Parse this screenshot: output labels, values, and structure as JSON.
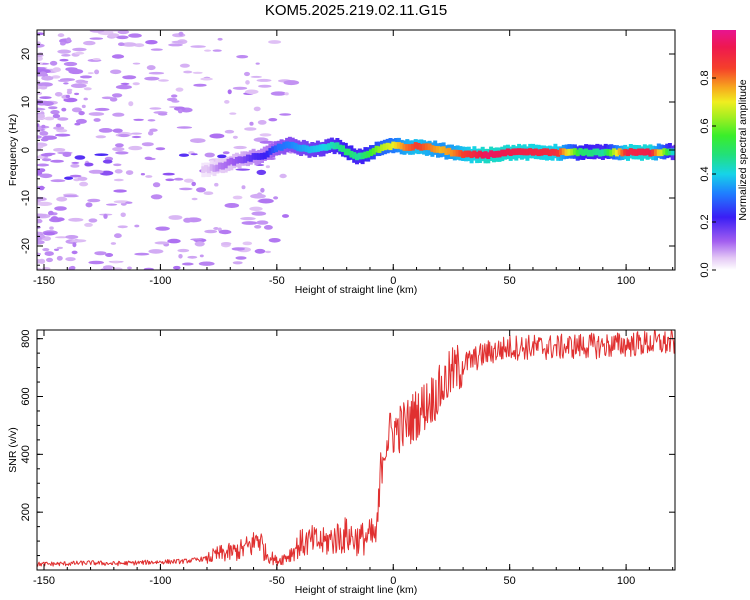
{
  "title": "KOM5.2025.219.02.11.G15",
  "chart_data": [
    {
      "type": "heatmap",
      "name": "spectrogram",
      "xlabel": "Height of straight line (km)",
      "ylabel": "Frequency (Hz)",
      "xlim": [
        -153,
        121
      ],
      "ylim": [
        -25,
        25
      ],
      "xticks": [
        -150,
        -100,
        -50,
        0,
        50,
        100
      ],
      "yticks": [
        -20,
        -10,
        0,
        10,
        20
      ],
      "colorbar": {
        "label": "Normalized spectral amplitude",
        "range": [
          0,
          1
        ],
        "ticks": [
          0.0,
          0.2,
          0.4,
          0.6,
          0.8
        ],
        "tick_labels": [
          "0.0",
          "0.2",
          "0.4",
          "0.6",
          "0.8"
        ]
      },
      "ridge": {
        "x": [
          -80,
          -75,
          -70,
          -65,
          -60,
          -55,
          -50,
          -45,
          -40,
          -35,
          -30,
          -25,
          -20,
          -15,
          -10,
          -5,
          0,
          5,
          10,
          15,
          20,
          25,
          30,
          40,
          50,
          60,
          70,
          80,
          90,
          100,
          110,
          120
        ],
        "freq": [
          -4,
          -3.5,
          -2.5,
          -2,
          -1.5,
          -1,
          0.5,
          1,
          0.5,
          0,
          0.5,
          1,
          -0.5,
          -1.5,
          -0.5,
          0.5,
          1,
          0.5,
          0.8,
          0.5,
          0,
          -0.5,
          -1,
          -1,
          -0.5,
          -0.5,
          -0.5,
          -0.5,
          -0.5,
          -0.5,
          -0.5,
          -0.3
        ],
        "amplitude": [
          0.05,
          0.1,
          0.12,
          0.15,
          0.2,
          0.22,
          0.3,
          0.32,
          0.35,
          0.38,
          0.4,
          0.45,
          0.5,
          0.45,
          0.55,
          0.65,
          0.7,
          0.8,
          0.85,
          0.8,
          0.75,
          0.78,
          0.85,
          0.95,
          0.92,
          0.9,
          0.88,
          0.5,
          0.45,
          0.9,
          0.92,
          0.4
        ]
      }
    },
    {
      "type": "line",
      "name": "snr",
      "xlabel": "Height of straight line (km)",
      "ylabel": "SNR (v/v)",
      "xlim": [
        -153,
        121
      ],
      "ylim": [
        0,
        830
      ],
      "xticks": [
        -150,
        -100,
        -50,
        0,
        50,
        100
      ],
      "yticks": [
        200,
        400,
        600,
        800
      ],
      "line_color": "#e03030",
      "series": [
        {
          "name": "SNR",
          "x": [
            -153,
            -140,
            -130,
            -120,
            -110,
            -100,
            -90,
            -80,
            -75,
            -70,
            -65,
            -60,
            -58,
            -55,
            -50,
            -45,
            -40,
            -35,
            -30,
            -25,
            -20,
            -15,
            -10,
            -7,
            -6,
            -5,
            -4,
            -3,
            0,
            5,
            10,
            15,
            20,
            25,
            30,
            35,
            40,
            50,
            60,
            70,
            80,
            90,
            100,
            110,
            121
          ],
          "y": [
            20,
            22,
            25,
            22,
            25,
            28,
            30,
            40,
            55,
            60,
            70,
            90,
            120,
            60,
            30,
            50,
            90,
            100,
            95,
            110,
            120,
            105,
            115,
            120,
            250,
            380,
            420,
            450,
            480,
            500,
            540,
            580,
            620,
            680,
            710,
            730,
            750,
            770,
            770,
            770,
            775,
            775,
            780,
            785,
            785
          ]
        }
      ]
    }
  ]
}
